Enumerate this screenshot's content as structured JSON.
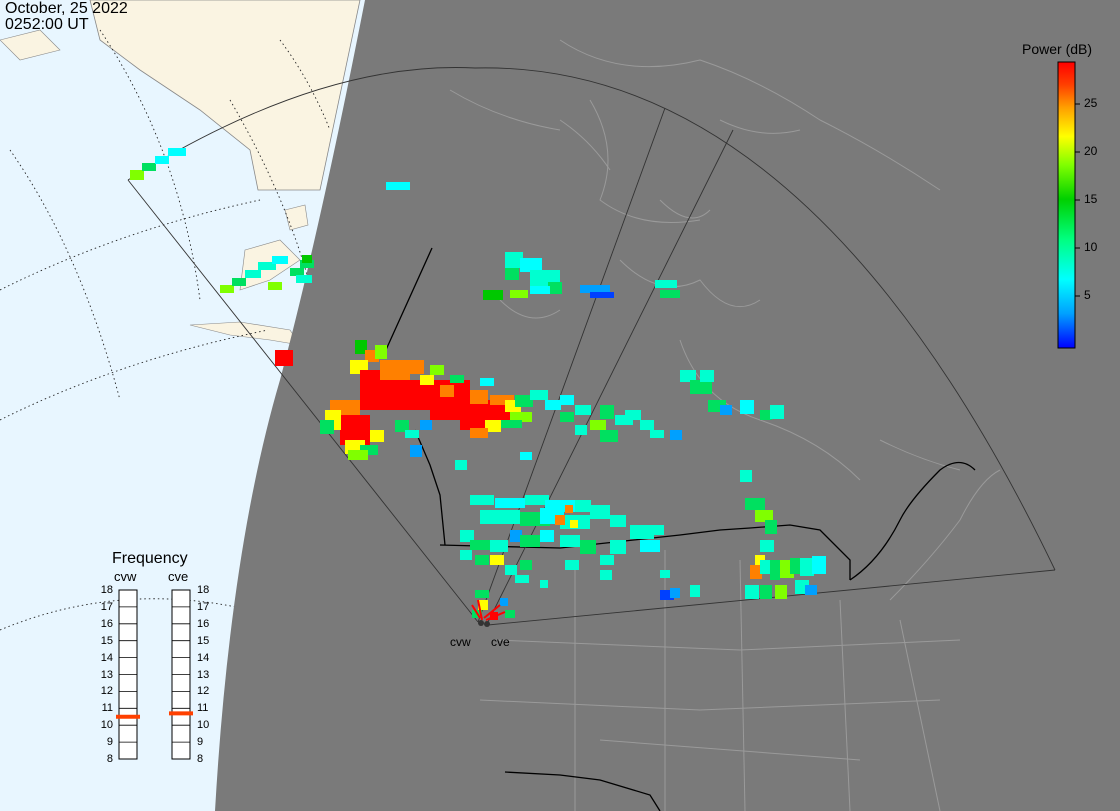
{
  "header": {
    "date": "October, 25 2022",
    "time": "0252:00 UT"
  },
  "colorbar": {
    "title": "Power (dB)",
    "ticks": [
      "25",
      "20",
      "15",
      "10",
      "5"
    ],
    "stops": [
      "#0000ff",
      "#00a0ff",
      "#00ffff",
      "#00ff80",
      "#00d000",
      "#80ff00",
      "#ffff00",
      "#ffa000",
      "#ff4000",
      "#ff0000"
    ]
  },
  "frequency_panel": {
    "title": "Frequency",
    "radars": [
      {
        "name": "cvw",
        "level_mhz": 10.5
      },
      {
        "name": "cve",
        "level_mhz": 10.7
      }
    ],
    "scale": [
      "18",
      "17",
      "16",
      "15",
      "14",
      "13",
      "12",
      "11",
      "10",
      "9",
      "8"
    ],
    "marker_color": "#ff4000"
  },
  "sites": [
    {
      "name": "cvw"
    },
    {
      "name": "cve"
    }
  ],
  "colors": {
    "ocean": "#e8f6ff",
    "land_day": "#faf4e2",
    "night": "#7a7a7a",
    "land_lines": "#9a9a9a"
  }
}
